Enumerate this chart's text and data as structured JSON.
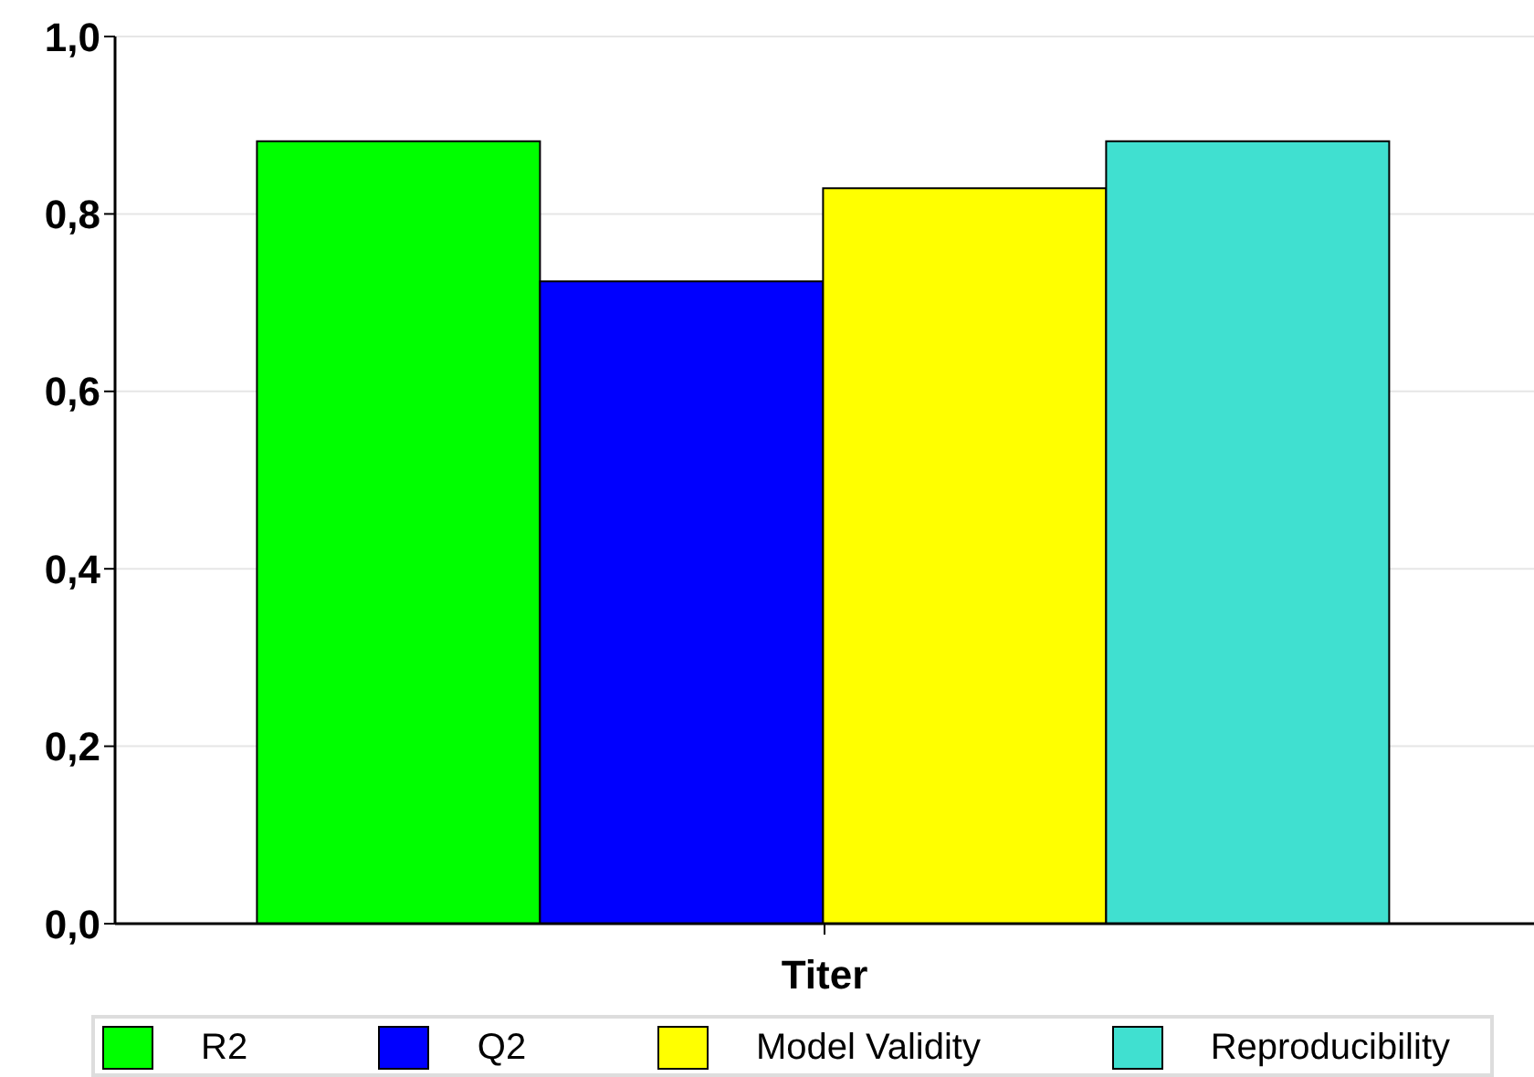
{
  "chart_data": {
    "type": "bar",
    "categories": [
      "Titer"
    ],
    "series": [
      {
        "name": "R2",
        "color": "#00ff00",
        "values": [
          0.882
        ]
      },
      {
        "name": "Q2",
        "color": "#0000ff",
        "values": [
          0.724
        ]
      },
      {
        "name": "Model Validity",
        "color": "#ffff00",
        "values": [
          0.829
        ]
      },
      {
        "name": "Reproducibility",
        "color": "#40e0d0",
        "values": [
          0.882
        ]
      }
    ],
    "ylim": [
      0,
      1
    ],
    "yticks": [
      {
        "value": 0,
        "label": "0,0"
      },
      {
        "value": 0.2,
        "label": "0,2"
      },
      {
        "value": 0.4,
        "label": "0,4"
      },
      {
        "value": 0.6,
        "label": "0,6"
      },
      {
        "value": 0.8,
        "label": "0,8"
      },
      {
        "value": 1,
        "label": "1,0"
      }
    ],
    "grid": "y",
    "legend": "bottom"
  }
}
